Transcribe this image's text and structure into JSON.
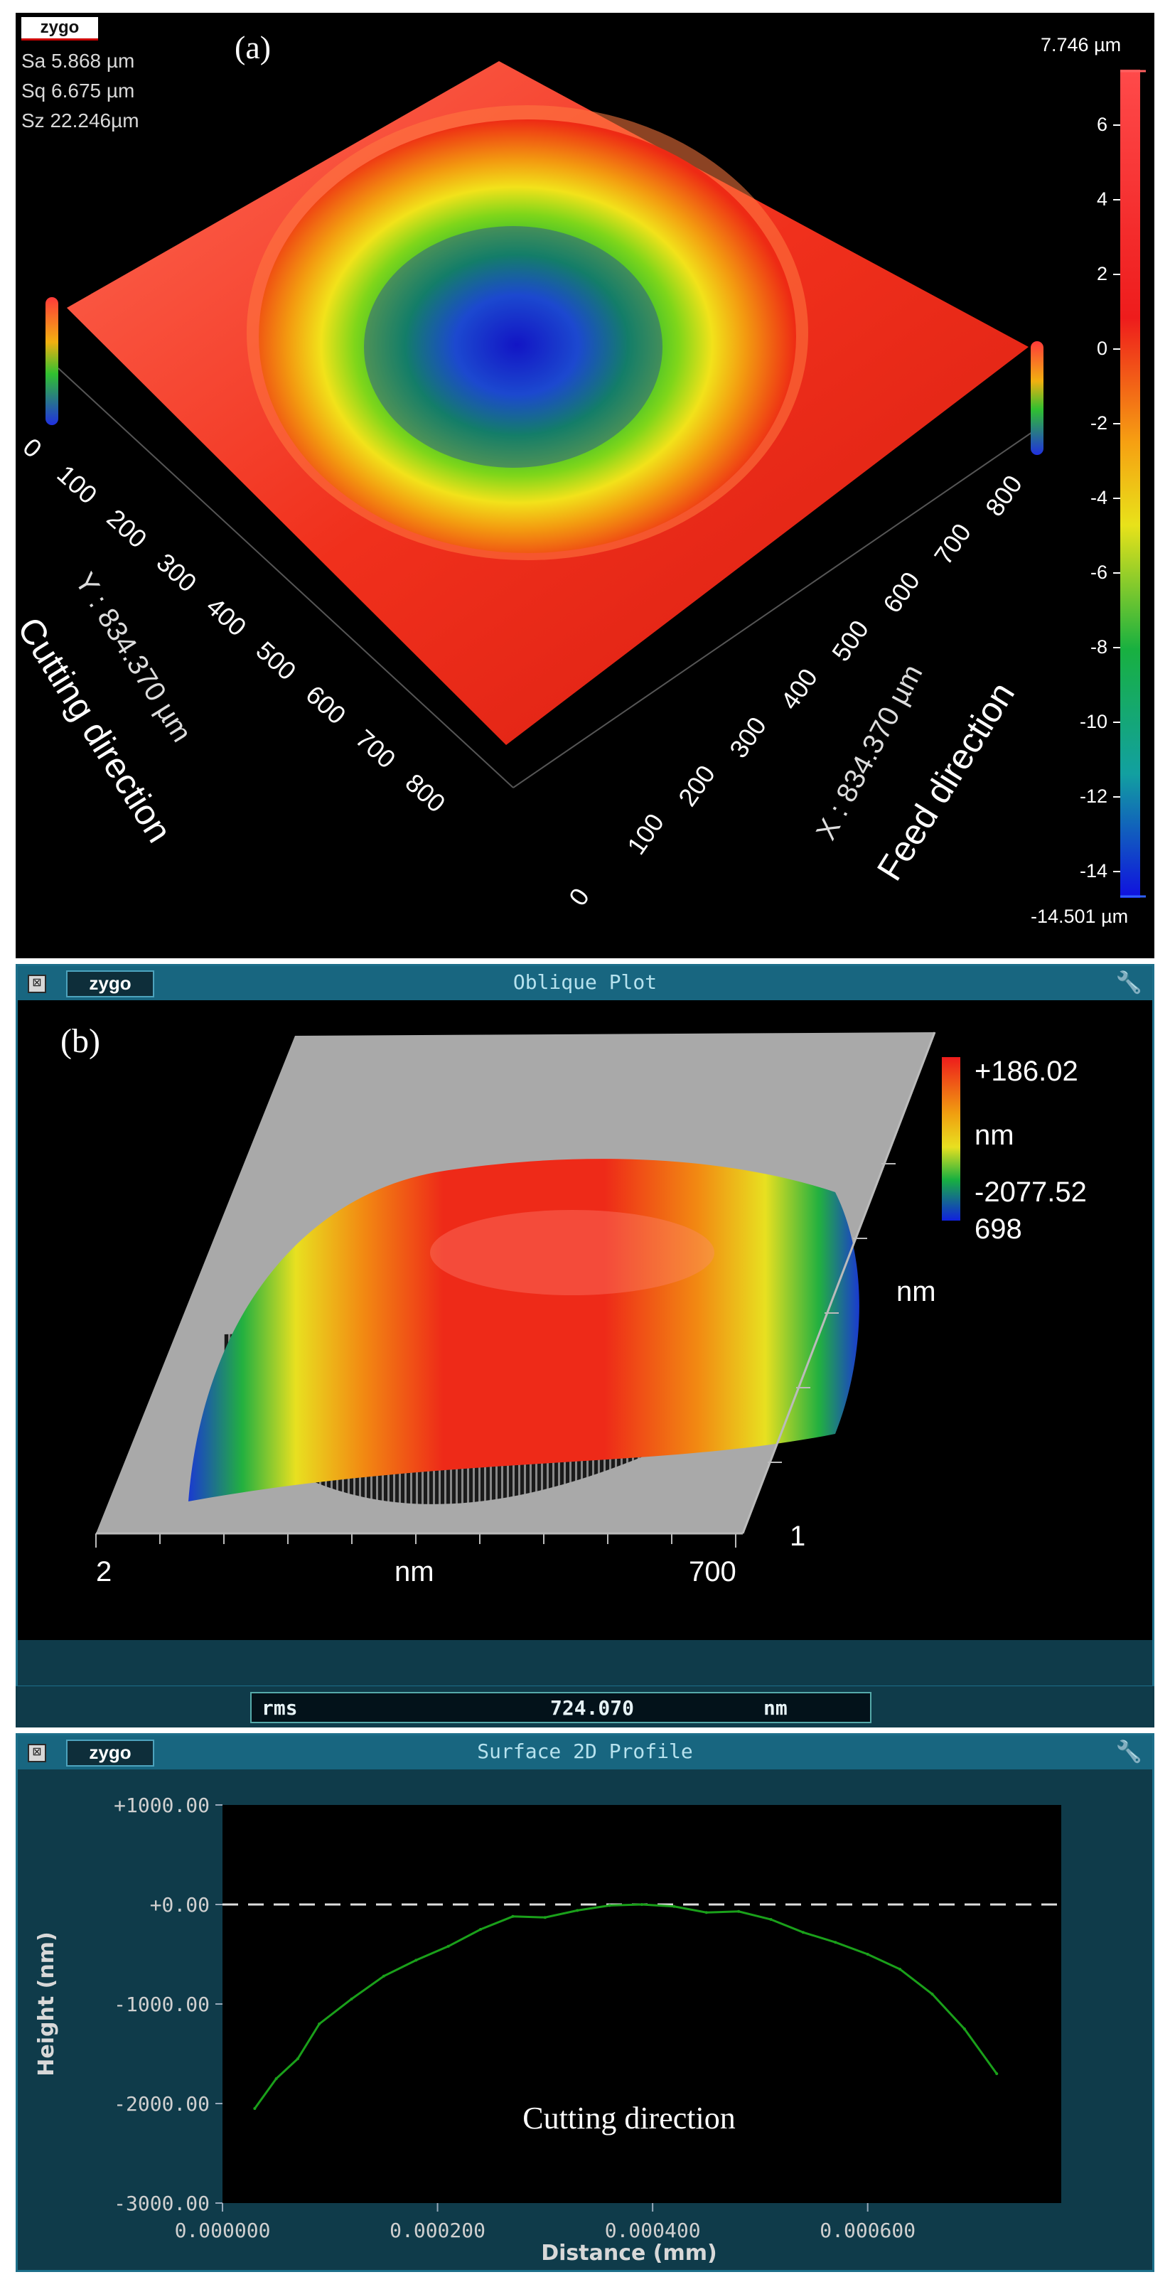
{
  "panel_a": {
    "logo": "zygo",
    "panel_label": "(a)",
    "stats": {
      "sa": "Sa 5.868  µm",
      "sq": "Sq 6.675  µm",
      "sz": "Sz 22.246µm"
    },
    "colorbar": {
      "max_label": "7.746  µm",
      "min_label": "-14.501 µm",
      "ticks": [
        "6",
        "4",
        "2",
        "0",
        "-2",
        "-4",
        "-6",
        "-8",
        "-10",
        "-12",
        "-14"
      ]
    },
    "y_axis": {
      "ticks": [
        "0",
        "100",
        "200",
        "300",
        "400",
        "500",
        "600",
        "700",
        "800"
      ],
      "label": "Y : 834.370 µm",
      "direction": "Cutting direction"
    },
    "x_axis": {
      "ticks": [
        "0",
        "100",
        "200",
        "300",
        "400",
        "500",
        "600",
        "700",
        "800"
      ],
      "label": "X : 834.370 µm",
      "direction": "Feed direction"
    }
  },
  "panel_b": {
    "title": "Oblique Plot",
    "logo": "zygo",
    "panel_label": "(b)",
    "scale_max": "+186.02",
    "scale_unit": "nm",
    "scale_min": "-2077.52",
    "scale_min_2": "698",
    "x_min": "2",
    "x_unit": "nm",
    "x_max": "700",
    "y_unit": "nm",
    "y_min": "1",
    "rms_label": "rms",
    "rms_value": "724.070",
    "rms_unit": "nm"
  },
  "panel_c": {
    "title": "Surface 2D Profile",
    "logo": "zygo",
    "annotation": "Cutting direction",
    "colors": {
      "profile": "#1aa01a",
      "zero_line": "#dddddd",
      "background": "#000000"
    },
    "chart_data": {
      "type": "line",
      "xlabel": "Distance (mm)",
      "ylabel": "Height (nm)",
      "xlim": [
        0,
        0.00078
      ],
      "ylim": [
        -3000,
        1000
      ],
      "x_ticks": [
        "0.000000",
        "0.000200",
        "0.000400",
        "0.000600"
      ],
      "y_ticks": [
        "+1000.00",
        "+0.00",
        "-1000.00",
        "-2000.00",
        "-3000.00"
      ],
      "reference_line": 0,
      "x": [
        3e-05,
        5e-05,
        7e-05,
        9e-05,
        0.00012,
        0.00015,
        0.00018,
        0.00021,
        0.00024,
        0.00027,
        0.0003,
        0.00033,
        0.00036,
        0.00039,
        0.00042,
        0.00045,
        0.00048,
        0.00051,
        0.00054,
        0.00057,
        0.0006,
        0.00063,
        0.00066,
        0.00069,
        0.00072
      ],
      "y": [
        -2050,
        -1750,
        -1550,
        -1200,
        -950,
        -720,
        -560,
        -420,
        -250,
        -120,
        -130,
        -60,
        -10,
        0,
        -20,
        -80,
        -70,
        -150,
        -280,
        -380,
        -500,
        -650,
        -900,
        -1250,
        -1700
      ]
    }
  }
}
